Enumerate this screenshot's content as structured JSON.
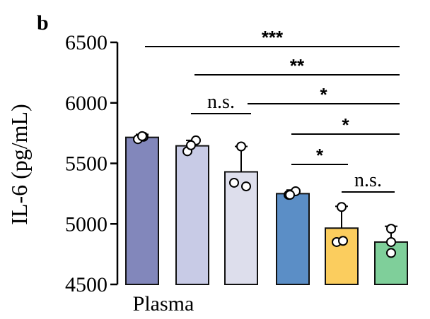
{
  "panel_label": "b",
  "chart_data": {
    "type": "bar",
    "ylabel": "IL-6 (pg/mL)",
    "ylim": [
      4500,
      6500
    ],
    "yticks": [
      4500,
      5000,
      5500,
      6000,
      6500
    ],
    "categories": [
      "Plasma",
      "",
      "",
      "",
      "",
      ""
    ],
    "values": [
      5715,
      5645,
      5430,
      5250,
      4965,
      4850
    ],
    "errors": [
      25,
      45,
      210,
      30,
      180,
      130
    ],
    "points": [
      [
        5700,
        5720,
        5725
      ],
      [
        5600,
        5690,
        5650
      ],
      [
        5340,
        5640,
        5310
      ],
      [
        5240,
        5270,
        5240
      ],
      [
        4850,
        4860,
        5140
      ],
      [
        4760,
        4960,
        4850
      ]
    ],
    "colors": [
      "#8287bb",
      "#c8cbe6",
      "#dddeec",
      "#5b8ec6",
      "#fbcd5e",
      "#7fcf9a"
    ],
    "significance": [
      {
        "from": 0,
        "to": 5,
        "label": "***"
      },
      {
        "from": 1,
        "to": 5,
        "label": "**"
      },
      {
        "from": 2,
        "to": 5,
        "label": "*"
      },
      {
        "from": 1,
        "to": 2,
        "label": "n.s."
      },
      {
        "from": 3,
        "to": 5,
        "label": "*"
      },
      {
        "from": 3,
        "to": 4,
        "label": "*"
      },
      {
        "from": 4,
        "to": 5,
        "label": "n.s."
      }
    ]
  }
}
